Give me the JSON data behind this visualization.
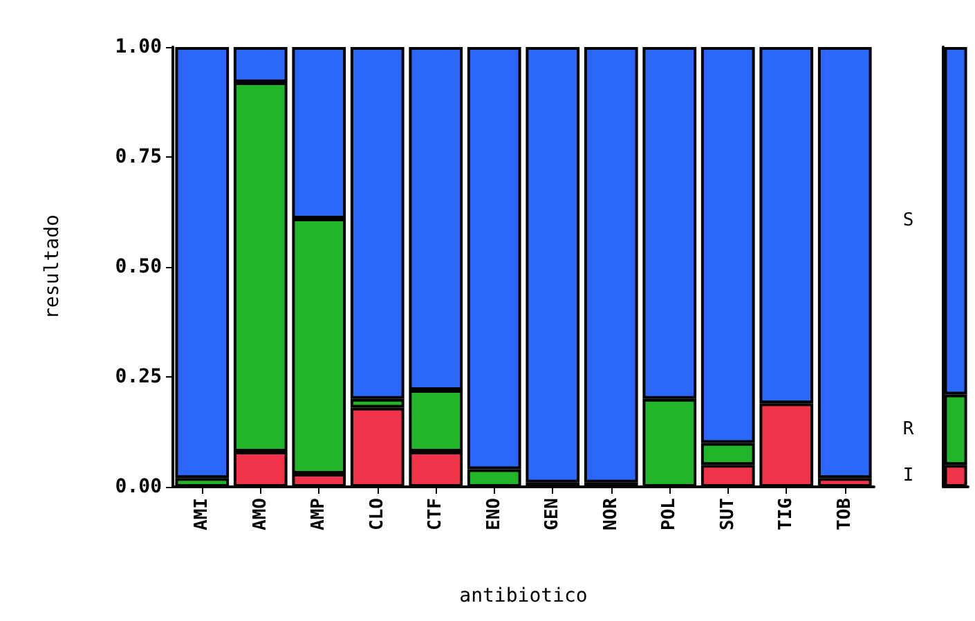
{
  "chart_data": [
    {
      "type": "bar",
      "stacked": true,
      "xlabel": "antibiotico",
      "ylabel": "resultado",
      "categories": [
        "AMI",
        "AMO",
        "AMP",
        "CLO",
        "CTF",
        "ENO",
        "GEN",
        "NOR",
        "POL",
        "SUT",
        "TIG",
        "TOB"
      ],
      "series": [
        {
          "color": "#f03348",
          "values": [
            0,
            0.08,
            0.03,
            0.18,
            0.08,
            0,
            0,
            0,
            0,
            0.05,
            0.19,
            0.02
          ]
        },
        {
          "color": "#22b52a",
          "values": [
            0.02,
            0.84,
            0.58,
            0.02,
            0.14,
            0.04,
            0.01,
            0.01,
            0.2,
            0.05,
            0,
            0
          ]
        },
        {
          "color": "#2b67fb",
          "values": [
            0.98,
            0.08,
            0.39,
            0.8,
            0.78,
            0.96,
            0.99,
            0.99,
            0.8,
            0.9,
            0.81,
            0.98
          ]
        }
      ],
      "ylim": [
        0,
        1
      ],
      "yticks": [
        {
          "value": 0,
          "label": "0.00"
        },
        {
          "value": 0.25,
          "label": "0.25"
        },
        {
          "value": 0.5,
          "label": "0.50"
        },
        {
          "value": 0.75,
          "label": "0.75"
        },
        {
          "value": 1,
          "label": "1.00"
        }
      ],
      "legend": false
    },
    {
      "type": "bar",
      "stacked": true,
      "categories": [
        null
      ],
      "series": [
        {
          "name": "I",
          "color": "#f03348",
          "values": [
            0.05
          ]
        },
        {
          "name": "R",
          "color": "#22b52a",
          "values": [
            0.16
          ]
        },
        {
          "name": "S",
          "color": "#2b67fb",
          "values": [
            0.79
          ]
        }
      ],
      "ylim": [
        0,
        1
      ],
      "tick_labels": false,
      "legend": false
    }
  ]
}
